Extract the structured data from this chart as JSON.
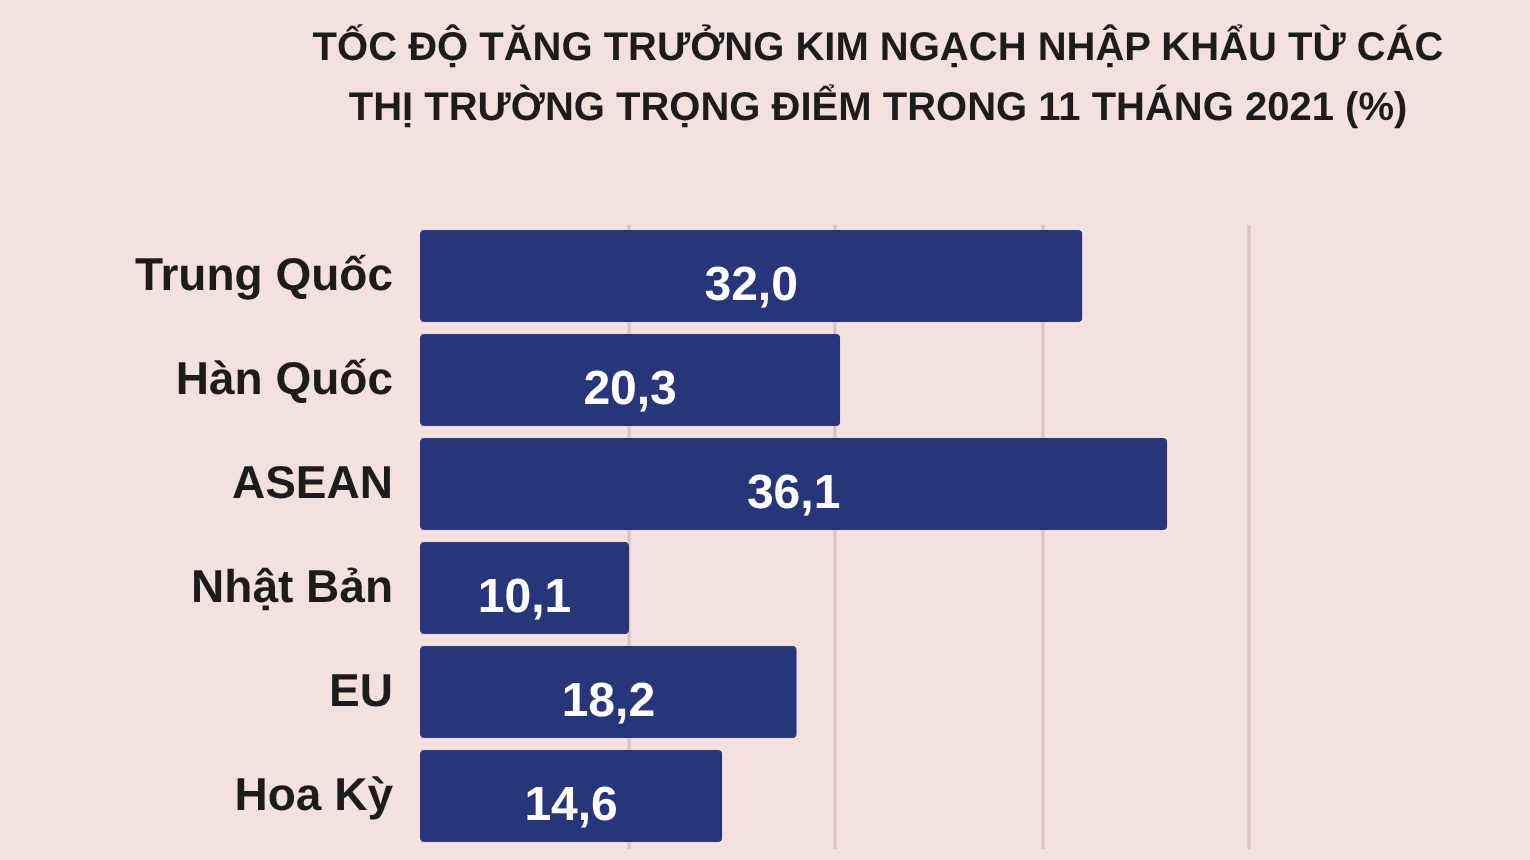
{
  "chart_data": {
    "type": "bar",
    "orientation": "horizontal",
    "title": "TỐC ĐỘ TĂNG TRƯỞNG KIM NGẠCH NHẬP KHẨU TỪ CÁC THỊ TRƯỜNG TRỌNG ĐIỂM TRONG 11 THÁNG 2021 (%)",
    "categories": [
      "Trung Quốc",
      "Hàn Quốc",
      "ASEAN",
      "Nhật Bản",
      "EU",
      "Hoa Kỳ"
    ],
    "values": [
      32.0,
      20.3,
      36.1,
      10.1,
      18.2,
      14.6
    ],
    "value_labels": [
      "32,0",
      "20,3",
      "36,1",
      "10,1",
      "18,2",
      "14,6"
    ],
    "color": "#27367a",
    "xlim": [
      0,
      40
    ],
    "xticks": [
      {
        "value": 10,
        "label": null
      },
      {
        "value": 20,
        "label": null
      },
      {
        "value": 30,
        "label": null
      },
      {
        "value": 40,
        "label": null
      }
    ],
    "grid": "x",
    "tick_labels": "y"
  }
}
